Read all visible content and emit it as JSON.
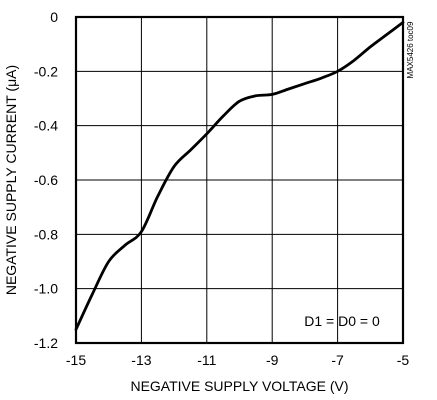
{
  "chart_data": {
    "type": "line",
    "title": "",
    "xlabel": "NEGATIVE SUPPLY VOLTAGE (V)",
    "ylabel": "NEGATIVE SUPPLY CURRENT (μA)",
    "xlim": [
      -15,
      -5
    ],
    "ylim": [
      -1.2,
      0
    ],
    "x_ticks": [
      "-15",
      "-13",
      "-11",
      "-9",
      "-7",
      "-5"
    ],
    "y_ticks": [
      "0",
      "-0.2",
      "-0.4",
      "-0.6",
      "-0.8",
      "-1.0",
      "-1.2"
    ],
    "grid": true,
    "annotation": "D1 = D0 = 0",
    "side_label": "MAX5426 toc09",
    "series": [
      {
        "x": [
          -15,
          -14.5,
          -14,
          -13.5,
          -13,
          -12.5,
          -12,
          -11.5,
          -11,
          -10.5,
          -10,
          -9.5,
          -9,
          -8.5,
          -8,
          -7.5,
          -7,
          -6.5,
          -6,
          -5.5,
          -5
        ],
        "y": [
          -1.15,
          -1.02,
          -0.9,
          -0.84,
          -0.79,
          -0.66,
          -0.55,
          -0.49,
          -0.43,
          -0.365,
          -0.31,
          -0.29,
          -0.285,
          -0.265,
          -0.245,
          -0.225,
          -0.2,
          -0.16,
          -0.11,
          -0.065,
          -0.02
        ]
      }
    ]
  }
}
